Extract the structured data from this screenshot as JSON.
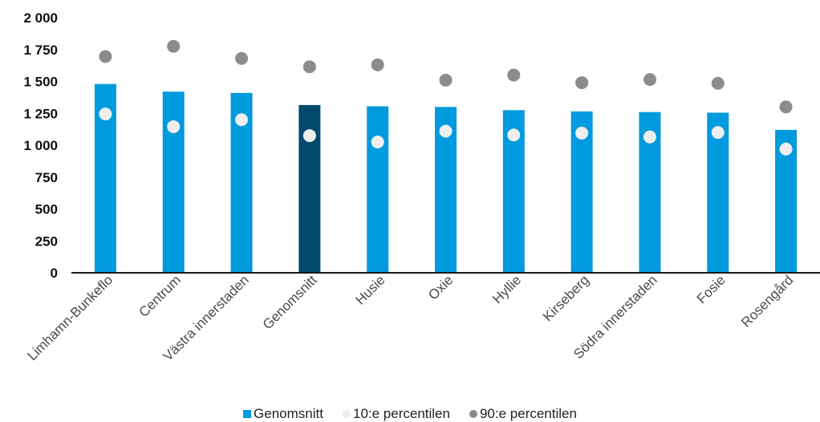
{
  "chart_data": {
    "type": "bar",
    "title": "",
    "xlabel": "",
    "ylabel": "",
    "ylim": [
      0,
      2000
    ],
    "yticks": [
      0,
      250,
      500,
      750,
      1000,
      1250,
      1500,
      1750,
      2000
    ],
    "ytick_labels": [
      "0",
      "250",
      "500",
      "750",
      "1 000",
      "1 250",
      "1 500",
      "1 750",
      "2 000"
    ],
    "categories": [
      "Limhamn-Bunkeflo",
      "Centrum",
      "Västra innerstaden",
      "Genomsnitt",
      "Husie",
      "Oxie",
      "Hyllie",
      "Kirseberg",
      "Södra innerstaden",
      "Fosie",
      "Rosengård"
    ],
    "highlight_category": "Genomsnitt",
    "series": [
      {
        "name": "Genomsnitt",
        "kind": "bar",
        "color": "#009ade",
        "values": [
          1480,
          1420,
          1410,
          1315,
          1305,
          1300,
          1275,
          1265,
          1260,
          1255,
          1120
        ]
      },
      {
        "name": "10:e percentilen",
        "kind": "dot",
        "color": "#eeeeee",
        "values": [
          1245,
          1145,
          1200,
          1075,
          1025,
          1110,
          1080,
          1095,
          1065,
          1100,
          970
        ]
      },
      {
        "name": "90:e percentilen",
        "kind": "dot",
        "color": "#8c8c8c",
        "values": [
          1695,
          1775,
          1680,
          1615,
          1630,
          1510,
          1550,
          1490,
          1515,
          1485,
          1300
        ]
      }
    ],
    "colors": {
      "bar": "#009ade",
      "bar_highlight": "#004b6c",
      "axis": "#1a1a1a"
    },
    "grid": false,
    "legend_position": "bottom"
  }
}
